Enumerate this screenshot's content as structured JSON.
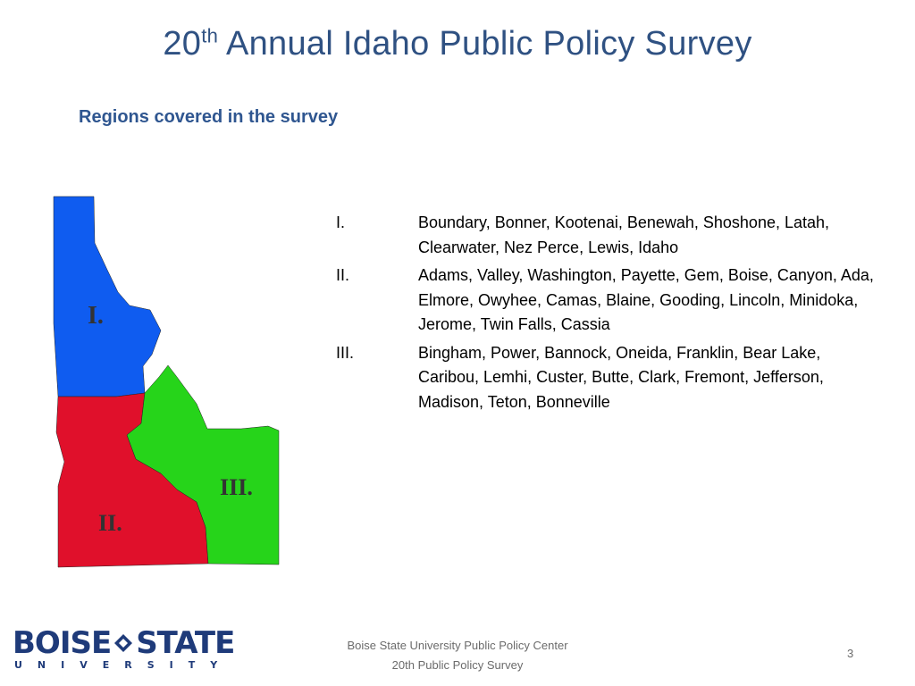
{
  "slide": {
    "title_main": "20",
    "title_sup": "th",
    "title_rest": " Annual Idaho Public Policy Survey",
    "subtitle": "Regions covered in the survey"
  },
  "map": {
    "labels": {
      "region1": "I.",
      "region2": "II.",
      "region3": "III."
    },
    "colors": {
      "region1": "#0f5cf0",
      "region2": "#e0102b",
      "region3": "#26d41a"
    }
  },
  "regions": [
    {
      "numeral": "I.",
      "counties": "Boundary, Bonner, Kootenai, Benewah, Shoshone, Latah, Clearwater, Nez Perce, Lewis, Idaho"
    },
    {
      "numeral": "II.",
      "counties": "Adams, Valley, Washington, Payette, Gem, Boise, Canyon, Ada, Elmore, Owyhee, Camas, Blaine, Gooding, Lincoln, Minidoka, Jerome, Twin Falls, Cassia"
    },
    {
      "numeral": "III.",
      "counties": "Bingham, Power, Bannock, Oneida, Franklin, Bear Lake, Caribou, Lemhi, Custer, Butte, Clark, Fremont, Jefferson, Madison, Teton, Bonneville"
    }
  ],
  "logo": {
    "word1": "BOISE",
    "word2": "STATE",
    "word3": "UNIVERSITY"
  },
  "footer": {
    "line1": "Boise State University  Public Policy Center",
    "line2": "20th Public Policy Survey",
    "page_number": "3"
  }
}
